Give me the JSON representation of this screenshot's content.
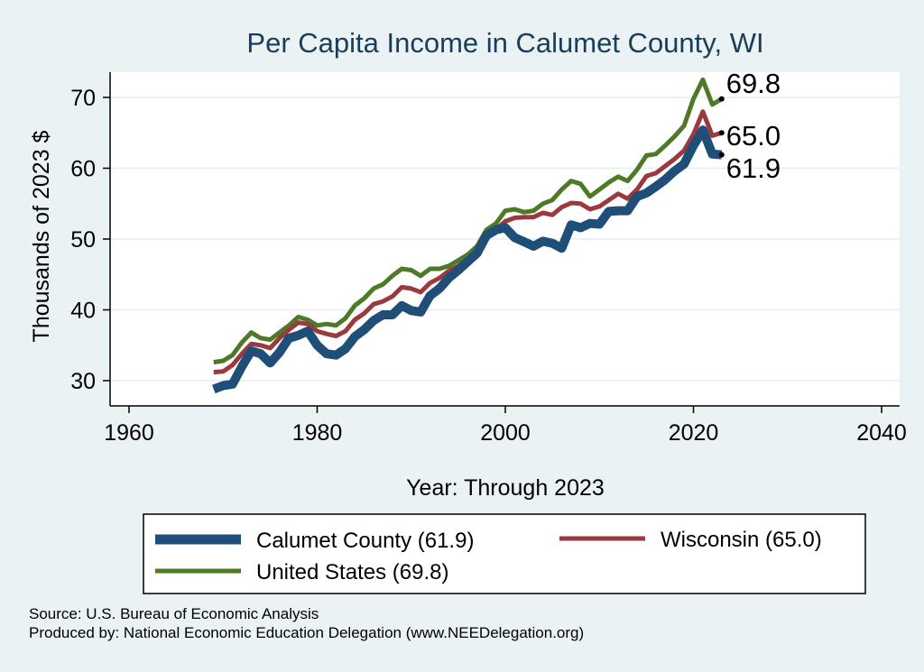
{
  "chart_data": {
    "type": "line",
    "title": "Per Capita Income in Calumet County, WI",
    "xlabel": "Year: Through 2023",
    "ylabel": "Thousands of 2023 $",
    "xlim": [
      1960,
      2040
    ],
    "ylim": [
      27,
      75
    ],
    "x_ticks": [
      1960,
      1980,
      2000,
      2020,
      2040
    ],
    "y_ticks": [
      30,
      40,
      50,
      60,
      70
    ],
    "grid": "horizontal",
    "legend_position": "bottom",
    "x": [
      1969,
      1970,
      1971,
      1972,
      1973,
      1974,
      1975,
      1976,
      1977,
      1978,
      1979,
      1980,
      1981,
      1982,
      1983,
      1984,
      1985,
      1986,
      1987,
      1988,
      1989,
      1990,
      1991,
      1992,
      1993,
      1994,
      1995,
      1996,
      1997,
      1998,
      1999,
      2000,
      2001,
      2002,
      2003,
      2004,
      2005,
      2006,
      2007,
      2008,
      2009,
      2010,
      2011,
      2012,
      2013,
      2014,
      2015,
      2016,
      2017,
      2018,
      2019,
      2020,
      2021,
      2022,
      2023
    ],
    "series": [
      {
        "name": "Calumet County (61.9)",
        "color": "#1f4e79",
        "end_label": "61.9",
        "values": [
          28.8,
          29.3,
          29.5,
          32.0,
          34.2,
          33.8,
          32.5,
          34.0,
          36.0,
          36.4,
          37.0,
          35.0,
          33.8,
          33.6,
          34.5,
          36.2,
          37.2,
          38.5,
          39.3,
          39.3,
          40.6,
          39.9,
          39.7,
          42.0,
          43.0,
          44.5,
          45.6,
          46.8,
          48.0,
          50.5,
          51.3,
          51.6,
          50.2,
          49.6,
          49.0,
          49.7,
          49.4,
          48.7,
          52.0,
          51.6,
          52.2,
          52.1,
          53.9,
          54.0,
          54.0,
          56.0,
          56.5,
          57.4,
          58.4,
          59.6,
          60.6,
          63.2,
          65.4,
          62.0,
          61.9
        ]
      },
      {
        "name": "Wisconsin (65.0)",
        "color": "#9b3a3e",
        "end_label": "65.0",
        "values": [
          31.2,
          31.3,
          32.2,
          33.8,
          35.2,
          35.0,
          34.6,
          36.0,
          37.2,
          38.2,
          38.0,
          37.0,
          36.6,
          36.3,
          37.0,
          38.6,
          39.5,
          40.8,
          41.2,
          41.9,
          43.2,
          43.0,
          42.5,
          43.8,
          44.5,
          45.5,
          46.2,
          47.2,
          48.4,
          50.0,
          51.4,
          52.5,
          53.0,
          53.1,
          53.1,
          53.7,
          53.4,
          54.5,
          55.1,
          55.0,
          54.2,
          54.6,
          55.5,
          56.4,
          55.7,
          57.0,
          58.9,
          59.3,
          60.3,
          61.3,
          62.5,
          64.8,
          68.0,
          64.6,
          65.0
        ]
      },
      {
        "name": "United States (69.8)",
        "color": "#4e7a28",
        "end_label": "69.8",
        "values": [
          32.6,
          32.8,
          33.6,
          35.4,
          36.8,
          36.0,
          35.8,
          36.8,
          37.8,
          39.0,
          38.6,
          37.8,
          38.0,
          37.8,
          38.8,
          40.6,
          41.6,
          43.0,
          43.6,
          44.8,
          45.8,
          45.6,
          44.8,
          45.8,
          45.8,
          46.2,
          47.0,
          47.8,
          49.0,
          51.3,
          52.2,
          54.0,
          54.2,
          53.8,
          54.0,
          55.0,
          55.5,
          57.0,
          58.2,
          57.8,
          56.0,
          57.0,
          58.0,
          58.8,
          58.2,
          59.8,
          61.8,
          62.0,
          63.2,
          64.5,
          66.0,
          69.8,
          72.5,
          69.0,
          69.8
        ]
      }
    ],
    "legend": [
      {
        "label": "Calumet County (61.9)"
      },
      {
        "label": "Wisconsin (65.0)"
      },
      {
        "label": "United States (69.8)"
      }
    ]
  },
  "source_lines": [
    "Source: U.S. Bureau of Economic Analysis",
    "Produced by: National Economic Education Delegation (www.NEEDelegation.org)"
  ]
}
